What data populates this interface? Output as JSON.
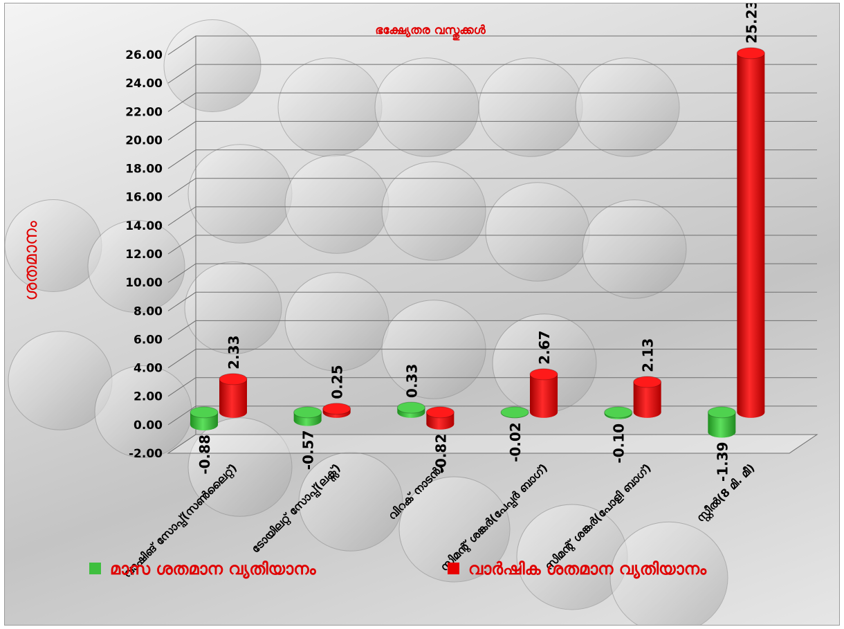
{
  "chart_data": {
    "type": "bar",
    "title": "ഭക്ഷ്യേതര വസ്തുക്കൾ",
    "ylabel": "ശതമാനം",
    "xlabel": "",
    "ylim": [
      -2,
      26
    ],
    "ytick_step": 2,
    "categories": [
      "വാഷിങ് സോപ്പ്(സൺലൈറ്റ്)",
      "ടോയിലറ്റ് സോപ്പ്(ലക്സ്)",
      "വിറക് നാടൻ)",
      "സിമന്റ് ശങ്കർ(പേപ്പർ ബാഗ്)",
      "സിമന്റ് ശങ്കർ(പോളി ബാഗ്)",
      "സ്റ്റീൽ(8 മി. മീ)"
    ],
    "series": [
      {
        "name": "മാസ ശതമാന വ്യതിയാനം",
        "color": "#3fbf3f",
        "values": [
          -0.88,
          -0.57,
          0.33,
          -0.02,
          -0.1,
          -1.39
        ]
      },
      {
        "name": "വാർഷിക ശതമാന വ്യതിയാനം",
        "color": "#e80000",
        "values": [
          2.33,
          0.25,
          -0.82,
          2.67,
          2.13,
          25.23
        ]
      }
    ],
    "legend_position": "bottom",
    "grid": true
  }
}
